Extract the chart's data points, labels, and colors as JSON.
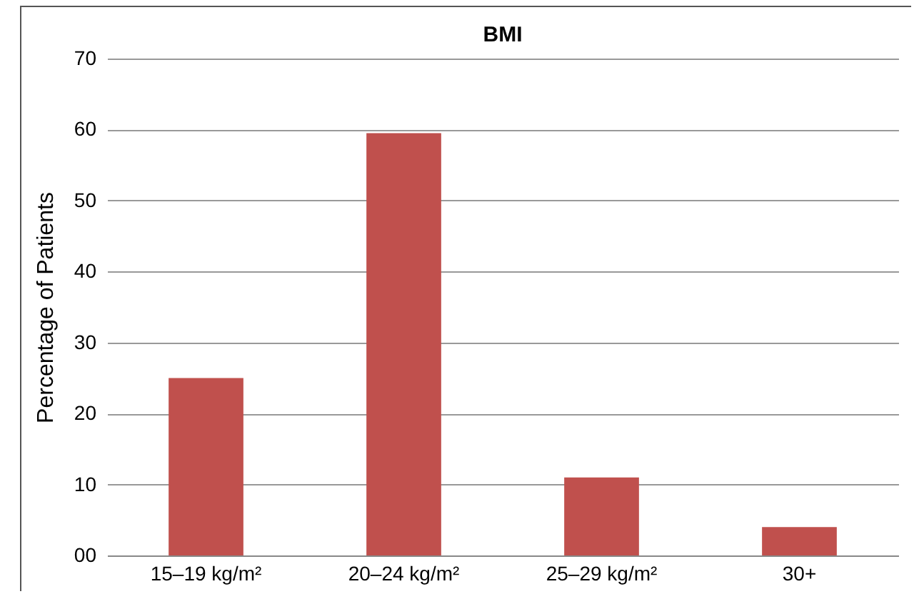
{
  "chart_data": {
    "type": "bar",
    "title": "BMI",
    "ylabel": "Percentage of Patients",
    "categories": [
      "15–19 kg/m²",
      "20–24 kg/m²",
      "25–29 kg/m²",
      "30+"
    ],
    "values": [
      25,
      59.5,
      11,
      4
    ],
    "color": "#c0504d",
    "ylim": [
      0,
      70
    ],
    "yticks": [
      {
        "value": 0,
        "label": "00"
      },
      10,
      20,
      30,
      40,
      50,
      60,
      70
    ],
    "grid": "y"
  }
}
